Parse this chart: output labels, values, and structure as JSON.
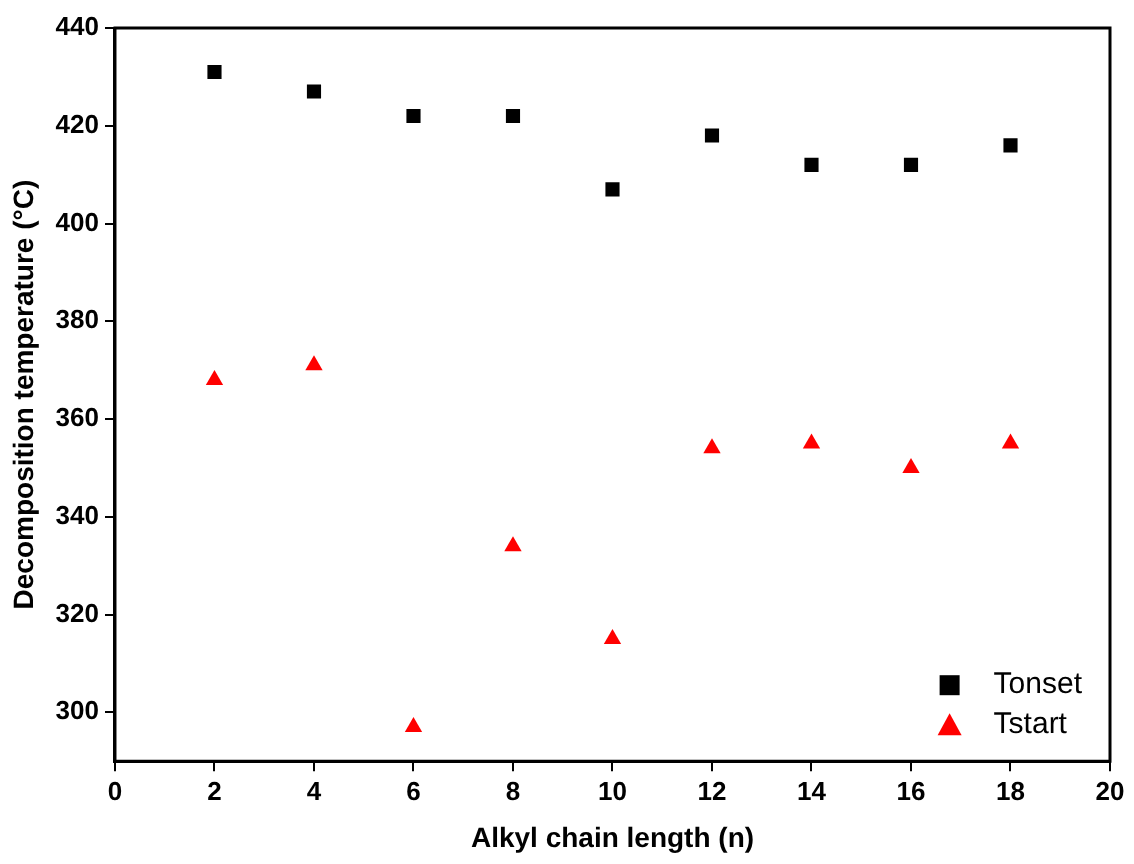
{
  "chart_data": {
    "type": "scatter",
    "xlabel": "Alkyl chain length (n)",
    "ylabel": "Decomposition temperature (°C)",
    "x": [
      2,
      4,
      6,
      8,
      10,
      12,
      14,
      16,
      18
    ],
    "series": [
      {
        "name": "Tonset",
        "color": "#000000",
        "marker": "square",
        "values": [
          431,
          427,
          422,
          422,
          407,
          418,
          412,
          412,
          416
        ]
      },
      {
        "name": "Tstart",
        "color": "#ff0000",
        "marker": "triangle",
        "values": [
          368,
          371,
          297,
          334,
          315,
          354,
          355,
          350,
          355
        ]
      }
    ],
    "xlim": [
      0,
      20
    ],
    "xticks": [
      0,
      2,
      4,
      6,
      8,
      10,
      12,
      14,
      16,
      18,
      20
    ],
    "ylim": [
      290,
      440
    ],
    "yticks": [
      300,
      320,
      340,
      360,
      380,
      400,
      420,
      440
    ],
    "grid": false,
    "legend": "bottom right"
  }
}
